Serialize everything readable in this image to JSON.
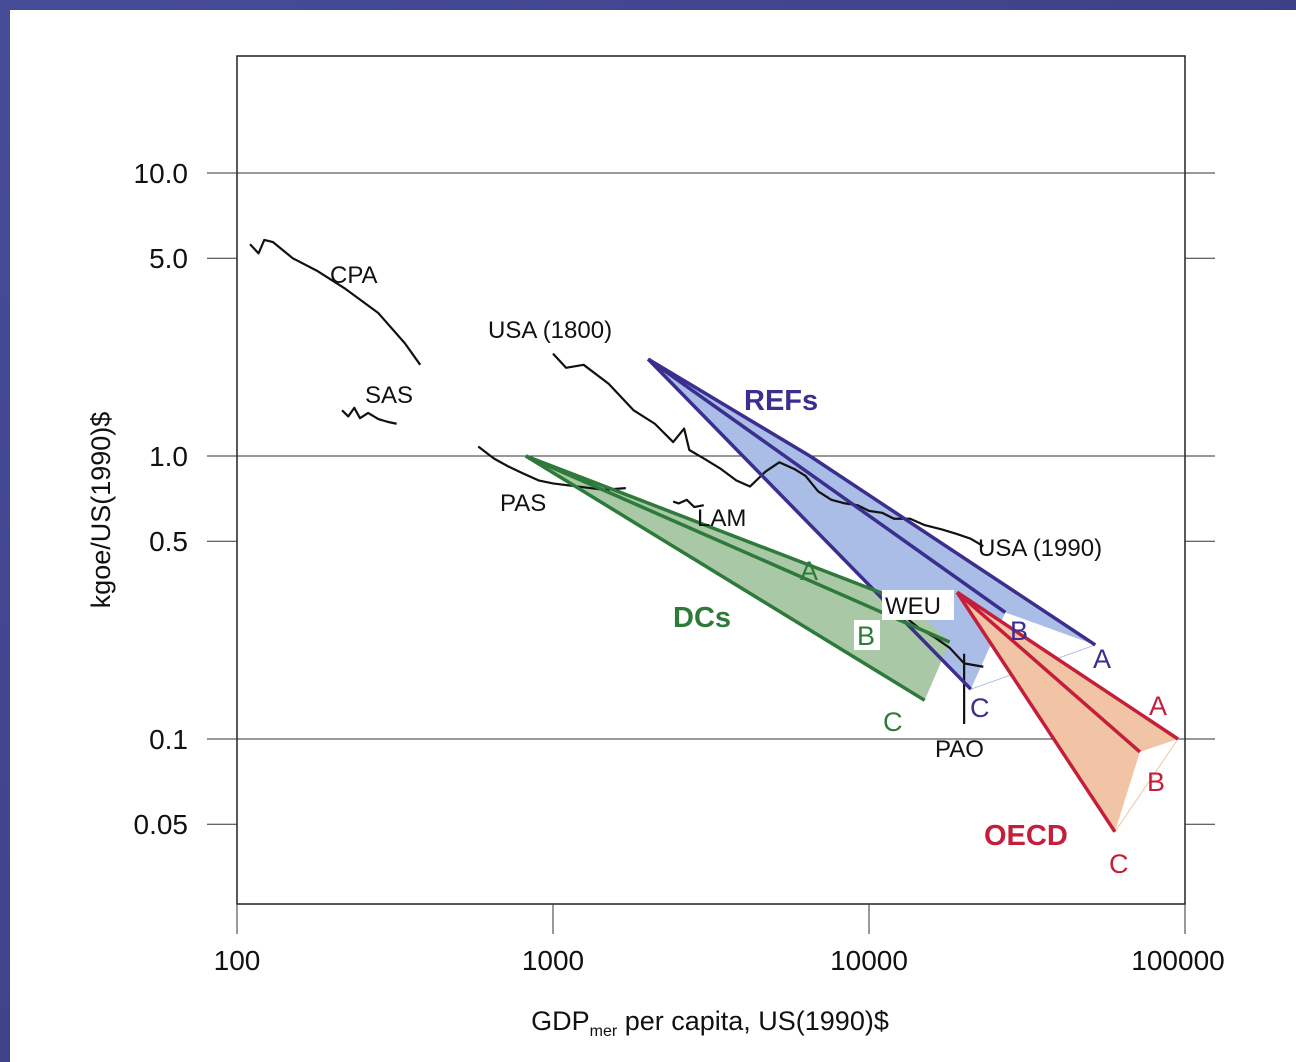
{
  "chart_data": {
    "type": "line",
    "xlabel": "GDPmer per capita, US(1990)$",
    "xlabel_main": "GDP",
    "xlabel_sub": "mer",
    "xlabel_rest": " per capita, US(1990)$",
    "ylabel": "kgoe/US(1990)$",
    "x_scale": "log",
    "y_scale": "log",
    "xlim": [
      100,
      100000
    ],
    "ylim": [
      0.03,
      20
    ],
    "x_ticks": [
      100,
      1000,
      10000,
      100000
    ],
    "x_tick_labels": [
      "100",
      "1000",
      "10000",
      "100000"
    ],
    "y_ticks": [
      0.05,
      0.1,
      0.5,
      1.0,
      5.0,
      10.0
    ],
    "y_tick_labels": [
      "0.05",
      "0.1",
      "0.5",
      "1.0",
      "5.0",
      "10.0"
    ],
    "grid_y": [
      0.1,
      1.0,
      10.0
    ],
    "historical_label_color": "#111111",
    "historical": [
      {
        "name": "CPA",
        "label": "CPA",
        "points": [
          [
            110,
            5.6
          ],
          [
            117,
            5.2
          ],
          [
            122,
            5.8
          ],
          [
            130,
            5.7
          ],
          [
            150,
            5.0
          ],
          [
            180,
            4.5
          ],
          [
            220,
            3.9
          ],
          [
            280,
            3.2
          ],
          [
            340,
            2.5
          ],
          [
            380,
            2.1
          ]
        ]
      },
      {
        "name": "SAS",
        "label": "SAS",
        "points": [
          [
            215,
            1.45
          ],
          [
            225,
            1.38
          ],
          [
            235,
            1.48
          ],
          [
            245,
            1.36
          ],
          [
            260,
            1.42
          ],
          [
            280,
            1.35
          ],
          [
            300,
            1.32
          ],
          [
            320,
            1.3
          ]
        ]
      },
      {
        "name": "USA",
        "label_start": "USA (1800)",
        "label_end": "USA (1990)",
        "points": [
          [
            1000,
            2.3
          ],
          [
            1100,
            2.05
          ],
          [
            1250,
            2.1
          ],
          [
            1500,
            1.8
          ],
          [
            1800,
            1.45
          ],
          [
            2100,
            1.3
          ],
          [
            2400,
            1.12
          ],
          [
            2600,
            1.25
          ],
          [
            2700,
            1.05
          ],
          [
            3000,
            0.98
          ],
          [
            3400,
            0.9
          ],
          [
            3800,
            0.82
          ],
          [
            4200,
            0.78
          ],
          [
            4700,
            0.88
          ],
          [
            5200,
            0.95
          ],
          [
            5800,
            0.9
          ],
          [
            6300,
            0.85
          ],
          [
            6900,
            0.75
          ],
          [
            7600,
            0.7
          ],
          [
            8400,
            0.68
          ],
          [
            9200,
            0.67
          ],
          [
            10000,
            0.64
          ],
          [
            11000,
            0.63
          ],
          [
            12000,
            0.6
          ],
          [
            13500,
            0.6
          ],
          [
            15000,
            0.57
          ],
          [
            17000,
            0.55
          ],
          [
            19000,
            0.53
          ],
          [
            21000,
            0.51
          ],
          [
            23000,
            0.48
          ]
        ]
      },
      {
        "name": "PAS",
        "label": "PAS",
        "points": [
          [
            580,
            1.08
          ],
          [
            650,
            0.98
          ],
          [
            720,
            0.92
          ],
          [
            800,
            0.87
          ],
          [
            900,
            0.82
          ],
          [
            1000,
            0.8
          ],
          [
            1200,
            0.78
          ],
          [
            1450,
            0.76
          ],
          [
            1700,
            0.77
          ]
        ]
      },
      {
        "name": "LAM",
        "label": "LAM",
        "points": [
          [
            2400,
            0.69
          ],
          [
            2500,
            0.68
          ],
          [
            2650,
            0.7
          ],
          [
            2800,
            0.66
          ],
          [
            3000,
            0.67
          ]
        ]
      },
      {
        "name": "WEU",
        "label": "WEU",
        "points": [
          [
            11000,
            0.31
          ],
          [
            12000,
            0.28
          ],
          [
            13000,
            0.27
          ],
          [
            14500,
            0.245
          ],
          [
            16000,
            0.23
          ],
          [
            18000,
            0.21
          ],
          [
            20000,
            0.185
          ],
          [
            23000,
            0.18
          ]
        ]
      },
      {
        "name": "PAO",
        "label": "PAO",
        "points": [
          [
            20000,
            0.2
          ],
          [
            20000,
            0.113
          ]
        ]
      }
    ],
    "scenario_groups": [
      {
        "name": "REFs",
        "color": "#3a2e8f",
        "fill": "#a9bde6",
        "start": [
          2000,
          2.2
        ],
        "scenarios": [
          {
            "label": "A",
            "end": [
              52000,
              0.215
            ],
            "via": [
              6500,
              1.0
            ]
          },
          {
            "label": "B",
            "end": [
              27000,
              0.28
            ]
          },
          {
            "label": "C",
            "end": [
              21000,
              0.15
            ]
          }
        ]
      },
      {
        "name": "DCs",
        "color": "#2e7a3a",
        "fill": "#a9c8a6",
        "start": [
          820,
          1.0
        ],
        "scenarios": [
          {
            "label": "A",
            "end": [
              13500,
              0.3
            ]
          },
          {
            "label": "B",
            "end": [
              18000,
              0.22
            ]
          },
          {
            "label": "C",
            "end": [
              15000,
              0.137
            ]
          }
        ]
      },
      {
        "name": "OECD",
        "color": "#c41e3a",
        "fill": "#f1c4a5",
        "start": [
          19000,
          0.33
        ],
        "scenarios": [
          {
            "label": "A",
            "end": [
              95000,
              0.1
            ]
          },
          {
            "label": "B",
            "end": [
              72000,
              0.09
            ]
          },
          {
            "label": "C",
            "end": [
              60000,
              0.047
            ]
          }
        ]
      }
    ]
  }
}
